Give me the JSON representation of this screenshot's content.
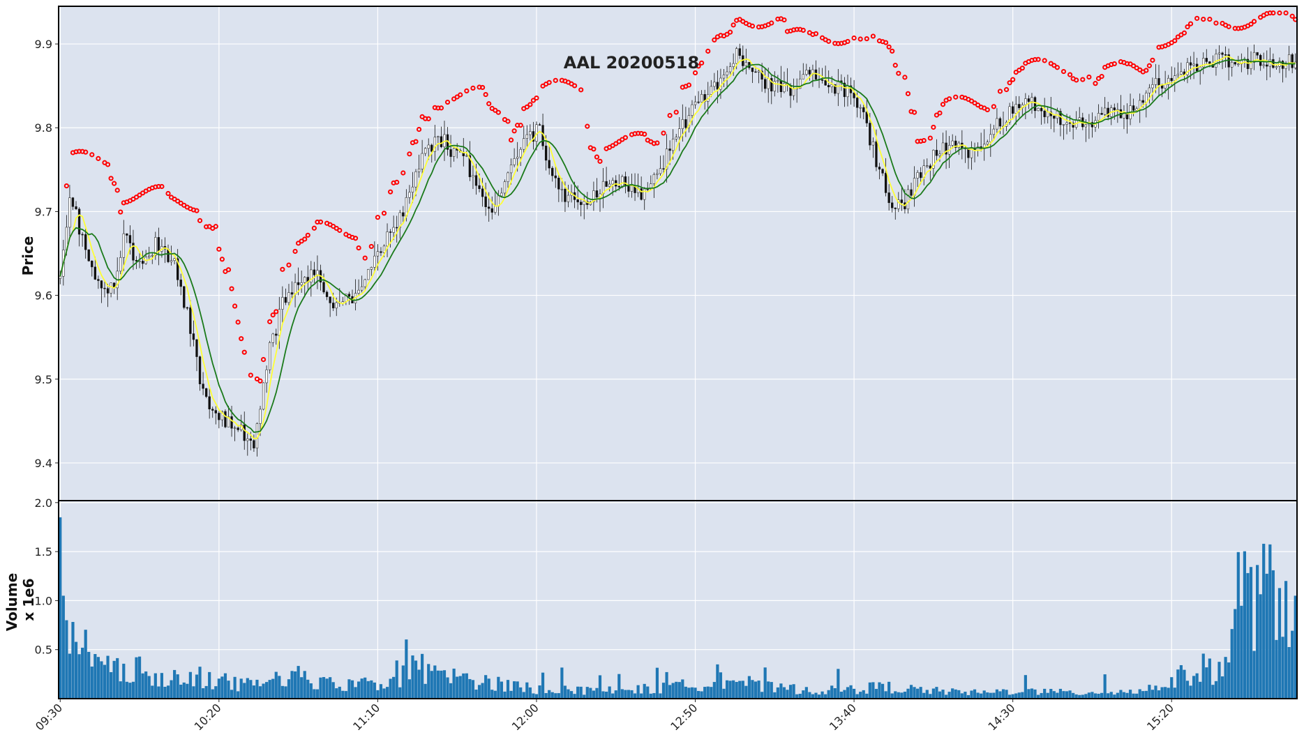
{
  "chart_data": [
    {
      "type": "candlestick",
      "title": "AAL 20200518",
      "ylabel": "Price",
      "ylim": [
        9.355,
        9.945
      ],
      "yticks": [
        "9.4",
        "9.5",
        "9.6",
        "9.7",
        "9.8",
        "9.9"
      ],
      "xticks": [
        "09:30",
        "10:20",
        "11:10",
        "12:00",
        "12:50",
        "13:40",
        "14:30",
        "15:20"
      ],
      "xrange": [
        "09:30",
        "15:59"
      ],
      "bar_interval_minutes": 1,
      "grid": true,
      "colors": {
        "background": "#dce3ef",
        "up": "#ffffff",
        "down": "#111111",
        "wick": "#111111",
        "ma_fast": "#ffff33",
        "ma_slow": "#1a7a1a",
        "markers": "#ff0000"
      },
      "price_path": [
        [
          0,
          9.62
        ],
        [
          3,
          9.72
        ],
        [
          6,
          9.68
        ],
        [
          10,
          9.63
        ],
        [
          15,
          9.61
        ],
        [
          18,
          9.62
        ],
        [
          20,
          9.67
        ],
        [
          24,
          9.64
        ],
        [
          30,
          9.66
        ],
        [
          36,
          9.64
        ],
        [
          40,
          9.58
        ],
        [
          44,
          9.5
        ],
        [
          48,
          9.46
        ],
        [
          52,
          9.45
        ],
        [
          56,
          9.44
        ],
        [
          61,
          9.42
        ],
        [
          65,
          9.52
        ],
        [
          70,
          9.59
        ],
        [
          76,
          9.62
        ],
        [
          80,
          9.63
        ],
        [
          85,
          9.59
        ],
        [
          92,
          9.6
        ],
        [
          100,
          9.65
        ],
        [
          108,
          9.7
        ],
        [
          114,
          9.76
        ],
        [
          119,
          9.79
        ],
        [
          124,
          9.77
        ],
        [
          128,
          9.76
        ],
        [
          132,
          9.72
        ],
        [
          136,
          9.7
        ],
        [
          141,
          9.75
        ],
        [
          146,
          9.78
        ],
        [
          151,
          9.8
        ],
        [
          154,
          9.75
        ],
        [
          158,
          9.72
        ],
        [
          165,
          9.71
        ],
        [
          174,
          9.74
        ],
        [
          180,
          9.73
        ],
        [
          184,
          9.72
        ],
        [
          188,
          9.75
        ],
        [
          192,
          9.77
        ],
        [
          197,
          9.81
        ],
        [
          202,
          9.83
        ],
        [
          208,
          9.86
        ],
        [
          213,
          9.89
        ],
        [
          218,
          9.87
        ],
        [
          224,
          9.85
        ],
        [
          230,
          9.84
        ],
        [
          235,
          9.86
        ],
        [
          240,
          9.86
        ],
        [
          244,
          9.85
        ],
        [
          250,
          9.84
        ],
        [
          254,
          9.8
        ],
        [
          258,
          9.75
        ],
        [
          262,
          9.71
        ],
        [
          266,
          9.71
        ],
        [
          270,
          9.74
        ],
        [
          276,
          9.77
        ],
        [
          282,
          9.78
        ],
        [
          288,
          9.77
        ],
        [
          294,
          9.8
        ],
        [
          300,
          9.82
        ],
        [
          306,
          9.83
        ],
        [
          310,
          9.81
        ],
        [
          316,
          9.81
        ],
        [
          324,
          9.8
        ],
        [
          330,
          9.82
        ],
        [
          336,
          9.82
        ],
        [
          342,
          9.84
        ],
        [
          348,
          9.86
        ],
        [
          352,
          9.87
        ],
        [
          356,
          9.87
        ],
        [
          360,
          9.88
        ],
        [
          369,
          9.88
        ]
      ],
      "volume_path_millions": [
        [
          0,
          1.85
        ],
        [
          1,
          1.05
        ],
        [
          2,
          0.8
        ],
        [
          3,
          0.62
        ],
        [
          4,
          0.52
        ],
        [
          6,
          0.45
        ],
        [
          8,
          0.35
        ],
        [
          12,
          0.3
        ],
        [
          20,
          0.35
        ],
        [
          25,
          0.3
        ],
        [
          30,
          0.28
        ],
        [
          36,
          0.25
        ],
        [
          40,
          0.3
        ],
        [
          45,
          0.22
        ],
        [
          50,
          0.18
        ],
        [
          55,
          0.15
        ],
        [
          60,
          0.14
        ],
        [
          65,
          0.18
        ],
        [
          70,
          0.2
        ],
        [
          80,
          0.18
        ],
        [
          90,
          0.15
        ],
        [
          100,
          0.16
        ],
        [
          110,
          0.28
        ],
        [
          114,
          0.35
        ],
        [
          118,
          0.22
        ],
        [
          124,
          0.3
        ],
        [
          130,
          0.18
        ],
        [
          140,
          0.14
        ],
        [
          150,
          0.1
        ],
        [
          160,
          0.09
        ],
        [
          170,
          0.08
        ],
        [
          180,
          0.09
        ],
        [
          190,
          0.11
        ],
        [
          200,
          0.14
        ],
        [
          205,
          0.2
        ],
        [
          210,
          0.22
        ],
        [
          215,
          0.18
        ],
        [
          220,
          0.12
        ],
        [
          230,
          0.1
        ],
        [
          240,
          0.08
        ],
        [
          250,
          0.1
        ],
        [
          260,
          0.12
        ],
        [
          270,
          0.09
        ],
        [
          280,
          0.07
        ],
        [
          290,
          0.06
        ],
        [
          300,
          0.08
        ],
        [
          310,
          0.07
        ],
        [
          320,
          0.06
        ],
        [
          330,
          0.07
        ],
        [
          340,
          0.08
        ],
        [
          345,
          0.12
        ],
        [
          350,
          0.18
        ],
        [
          355,
          0.25
        ],
        [
          360,
          0.3
        ],
        [
          365,
          0.3
        ],
        [
          368,
          0.4
        ],
        [
          369,
          1.05
        ]
      ]
    },
    {
      "type": "bar",
      "ylabel": "Volume\nx 1e6",
      "ylabel_lines": [
        "Volume",
        "x 1e6"
      ],
      "ylim": [
        0,
        2.02
      ],
      "yticks": [
        "0.5",
        "1.0",
        "1.5",
        "2.0"
      ],
      "color": "#1f77b4"
    }
  ]
}
